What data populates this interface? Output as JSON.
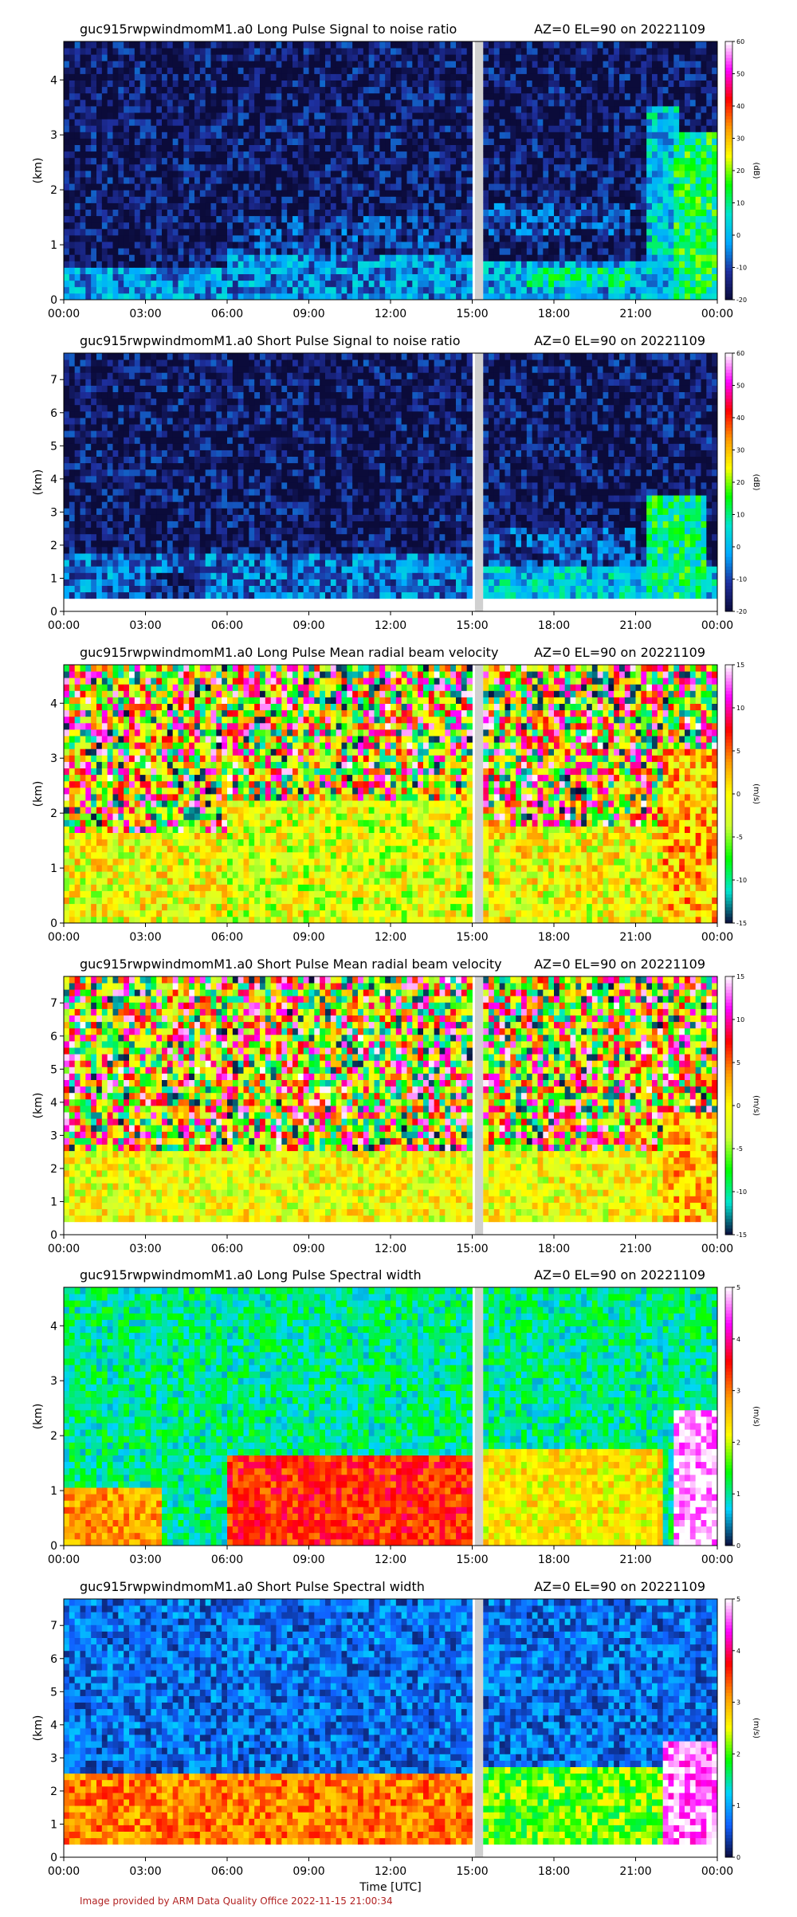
{
  "chart_data": [
    {
      "type": "heatmap",
      "title_left": "guc915rwpwindmomM1.a0 Long Pulse Signal to noise ratio",
      "title_right": "AZ=0 EL=90 on 20221109",
      "ylabel": "(km)",
      "ylim": [
        0,
        4.7
      ],
      "yticks": [
        "0",
        "1",
        "2",
        "3",
        "4"
      ],
      "x_ticks": [
        "00:00",
        "03:00",
        "06:00",
        "09:00",
        "12:00",
        "15:00",
        "18:00",
        "21:00",
        "00:00"
      ],
      "colorbar": {
        "unit": "(dB)",
        "min": -20,
        "max": 60,
        "ticks": [
          "-20",
          "-10",
          "0",
          "10",
          "20",
          "30",
          "40",
          "50",
          "60"
        ],
        "stops": [
          "#0b0b3a",
          "#1e2f9e",
          "#00a9ff",
          "#00e5d0",
          "#00ff00",
          "#ffff00",
          "#ff9900",
          "#ff0000",
          "#ff00ff",
          "#ffffff"
        ]
      },
      "field": "snr",
      "layers": [
        {
          "x": [
            0,
            24
          ],
          "y": [
            0,
            4.7
          ],
          "value": -17
        },
        {
          "x": [
            0,
            6
          ],
          "y": [
            0,
            0.6
          ],
          "value": -3
        },
        {
          "x": [
            6,
            15
          ],
          "y": [
            0,
            0.8
          ],
          "value": -4
        },
        {
          "x": [
            15.4,
            24
          ],
          "y": [
            0,
            0.7
          ],
          "value": -1
        },
        {
          "x": [
            17,
            21
          ],
          "y": [
            0.2,
            0.6
          ],
          "value": 8
        },
        {
          "x": [
            6,
            15
          ],
          "y": [
            0.8,
            1.5
          ],
          "value": -12
        },
        {
          "x": [
            15.4,
            21
          ],
          "y": [
            1.2,
            1.8
          ],
          "value": -11
        },
        {
          "x": [
            21.5,
            22.5
          ],
          "y": [
            0.3,
            3.5
          ],
          "value": 2
        },
        {
          "x": [
            22.5,
            24
          ],
          "y": [
            0,
            3.0
          ],
          "value": 12
        }
      ],
      "gap": [
        15.1,
        15.4
      ],
      "noise": 0.25
    },
    {
      "type": "heatmap",
      "title_left": "guc915rwpwindmomM1.a0 Short Pulse Signal to noise ratio",
      "title_right": "AZ=0 EL=90 on 20221109",
      "ylabel": "(km)",
      "ylim": [
        0,
        7.8
      ],
      "yticks": [
        "0",
        "1",
        "2",
        "3",
        "4",
        "5",
        "6",
        "7"
      ],
      "x_ticks": [
        "00:00",
        "03:00",
        "06:00",
        "09:00",
        "12:00",
        "15:00",
        "18:00",
        "21:00",
        "00:00"
      ],
      "colorbar": {
        "unit": "(dB)",
        "min": -20,
        "max": 60,
        "ticks": [
          "-20",
          "-10",
          "0",
          "10",
          "20",
          "30",
          "40",
          "50",
          "60"
        ],
        "stops": [
          "#0b0b3a",
          "#1e2f9e",
          "#00a9ff",
          "#00e5d0",
          "#00ff00",
          "#ffff00",
          "#ff9900",
          "#ff0000",
          "#ff00ff",
          "#ffffff"
        ]
      },
      "field": "snr",
      "layers": [
        {
          "x": [
            0,
            24
          ],
          "y": [
            0.45,
            7.8
          ],
          "value": -17
        },
        {
          "x": [
            0,
            15
          ],
          "y": [
            0.45,
            1.8
          ],
          "value": -6
        },
        {
          "x": [
            3,
            5
          ],
          "y": [
            0.45,
            1.2
          ],
          "value": -15
        },
        {
          "x": [
            15.4,
            24
          ],
          "y": [
            0.45,
            1.4
          ],
          "value": 2
        },
        {
          "x": [
            15.4,
            21
          ],
          "y": [
            1.4,
            2.6
          ],
          "value": -10
        },
        {
          "x": [
            21.5,
            23.5
          ],
          "y": [
            0.45,
            3.6
          ],
          "value": 10
        }
      ],
      "gap": [
        15.1,
        15.4
      ],
      "noise": 0.25
    },
    {
      "type": "heatmap",
      "title_left": "guc915rwpwindmomM1.a0 Long Pulse Mean radial beam velocity",
      "title_right": "AZ=0 EL=90 on 20221109",
      "ylabel": "(km)",
      "ylim": [
        0,
        4.7
      ],
      "yticks": [
        "0",
        "1",
        "2",
        "3",
        "4"
      ],
      "x_ticks": [
        "00:00",
        "03:00",
        "06:00",
        "09:00",
        "12:00",
        "15:00",
        "18:00",
        "21:00",
        "00:00"
      ],
      "colorbar": {
        "unit": "(m/s)",
        "min": -15,
        "max": 15,
        "ticks": [
          "-15",
          "-10",
          "-5",
          "0",
          "5",
          "10",
          "15"
        ],
        "stops": [
          "#0b0b3a",
          "#00e5d0",
          "#00ff00",
          "#ccff33",
          "#ffff00",
          "#ff9900",
          "#ff0000",
          "#ff00ff",
          "#ffffff"
        ]
      },
      "field": "velocity",
      "layers": [
        {
          "x": [
            0,
            24
          ],
          "y": [
            0,
            4.7
          ],
          "value": "random"
        },
        {
          "x": [
            0,
            15
          ],
          "y": [
            0,
            1.6
          ],
          "value": -1
        },
        {
          "x": [
            6,
            15
          ],
          "y": [
            0,
            2.2
          ],
          "value": -2
        },
        {
          "x": [
            15.4,
            22
          ],
          "y": [
            0,
            1.8
          ],
          "value": -1
        },
        {
          "x": [
            22,
            24
          ],
          "y": [
            0,
            3.2
          ],
          "value": 2
        }
      ],
      "gap": [
        15.1,
        15.4
      ],
      "noise": 0.35
    },
    {
      "type": "heatmap",
      "title_left": "guc915rwpwindmomM1.a0 Short Pulse Mean radial beam velocity",
      "title_right": "AZ=0 EL=90 on 20221109",
      "ylabel": "(km)",
      "ylim": [
        0,
        7.8
      ],
      "yticks": [
        "0",
        "1",
        "2",
        "3",
        "4",
        "5",
        "6",
        "7"
      ],
      "x_ticks": [
        "00:00",
        "03:00",
        "06:00",
        "09:00",
        "12:00",
        "15:00",
        "18:00",
        "21:00",
        "00:00"
      ],
      "colorbar": {
        "unit": "(m/s)",
        "min": -15,
        "max": 15,
        "ticks": [
          "-15",
          "-10",
          "-5",
          "0",
          "5",
          "10",
          "15"
        ],
        "stops": [
          "#0b0b3a",
          "#00e5d0",
          "#00ff00",
          "#ccff33",
          "#ffff00",
          "#ff9900",
          "#ff0000",
          "#ff00ff",
          "#ffffff"
        ]
      },
      "field": "velocity",
      "layers": [
        {
          "x": [
            0,
            24
          ],
          "y": [
            0.45,
            7.8
          ],
          "value": "random"
        },
        {
          "x": [
            0,
            15
          ],
          "y": [
            0.45,
            2.6
          ],
          "value": -1
        },
        {
          "x": [
            15.4,
            22
          ],
          "y": [
            0.45,
            2.6
          ],
          "value": -1
        },
        {
          "x": [
            22,
            24
          ],
          "y": [
            0.45,
            3.8
          ],
          "value": 2
        }
      ],
      "gap": [
        15.1,
        15.4
      ],
      "noise": 0.3
    },
    {
      "type": "heatmap",
      "title_left": "guc915rwpwindmomM1.a0 Long Pulse Spectral width",
      "title_right": "AZ=0 EL=90 on 20221109",
      "ylabel": "(km)",
      "ylim": [
        0,
        4.7
      ],
      "yticks": [
        "0",
        "1",
        "2",
        "3",
        "4"
      ],
      "x_ticks": [
        "00:00",
        "03:00",
        "06:00",
        "09:00",
        "12:00",
        "15:00",
        "18:00",
        "21:00",
        "00:00"
      ],
      "colorbar": {
        "unit": "(m/s)",
        "min": 0,
        "max": 5,
        "ticks": [
          "0",
          "1",
          "2",
          "3",
          "4",
          "5"
        ],
        "stops": [
          "#0b0b3a",
          "#00d4ff",
          "#00ff00",
          "#ffff00",
          "#ff9900",
          "#ff0000",
          "#ff00ff",
          "#ffffff"
        ]
      },
      "field": "width",
      "layers": [
        {
          "x": [
            0,
            24
          ],
          "y": [
            0,
            4.7
          ],
          "value": 1.05
        },
        {
          "x": [
            0,
            3.5
          ],
          "y": [
            0,
            1.0
          ],
          "value": 2.8
        },
        {
          "x": [
            6,
            15
          ],
          "y": [
            0,
            1.7
          ],
          "value": 3.4
        },
        {
          "x": [
            15.4,
            22
          ],
          "y": [
            0,
            1.8
          ],
          "value": 2.3
        },
        {
          "x": [
            22.5,
            24
          ],
          "y": [
            0,
            2.5
          ],
          "value": 4.8
        }
      ],
      "gap": [
        15.1,
        15.4
      ],
      "noise": 0.2
    },
    {
      "type": "heatmap",
      "title_left": "guc915rwpwindmomM1.a0 Short Pulse Spectral width",
      "title_right": "AZ=0 EL=90 on 20221109",
      "ylabel": "(km)",
      "ylim": [
        0,
        7.8
      ],
      "yticks": [
        "0",
        "1",
        "2",
        "3",
        "4",
        "5",
        "6",
        "7"
      ],
      "x_ticks": [
        "00:00",
        "03:00",
        "06:00",
        "09:00",
        "12:00",
        "15:00",
        "18:00",
        "21:00",
        "00:00"
      ],
      "xlabel": "Time [UTC]",
      "colorbar": {
        "unit": "(m/s)",
        "min": 0,
        "max": 5,
        "ticks": [
          "0",
          "1",
          "2",
          "3",
          "4",
          "5"
        ],
        "stops": [
          "#0b0b3a",
          "#1060ff",
          "#00d4ff",
          "#00ff00",
          "#ffff00",
          "#ff9900",
          "#ff0000",
          "#ff00ff",
          "#ffffff"
        ]
      },
      "field": "width",
      "layers": [
        {
          "x": [
            0,
            24
          ],
          "y": [
            0.45,
            7.8
          ],
          "value": 0.7
        },
        {
          "x": [
            0,
            15
          ],
          "y": [
            0.45,
            2.5
          ],
          "value": 3.2
        },
        {
          "x": [
            15.4,
            22
          ],
          "y": [
            0.45,
            2.8
          ],
          "value": 2.1
        },
        {
          "x": [
            22,
            24
          ],
          "y": [
            0.45,
            3.6
          ],
          "value": 4.7
        }
      ],
      "gap": [
        15.1,
        15.4
      ],
      "noise": 0.2
    }
  ],
  "footer": "Image provided by ARM Data Quality Office 2022-11-15 21:00:34"
}
